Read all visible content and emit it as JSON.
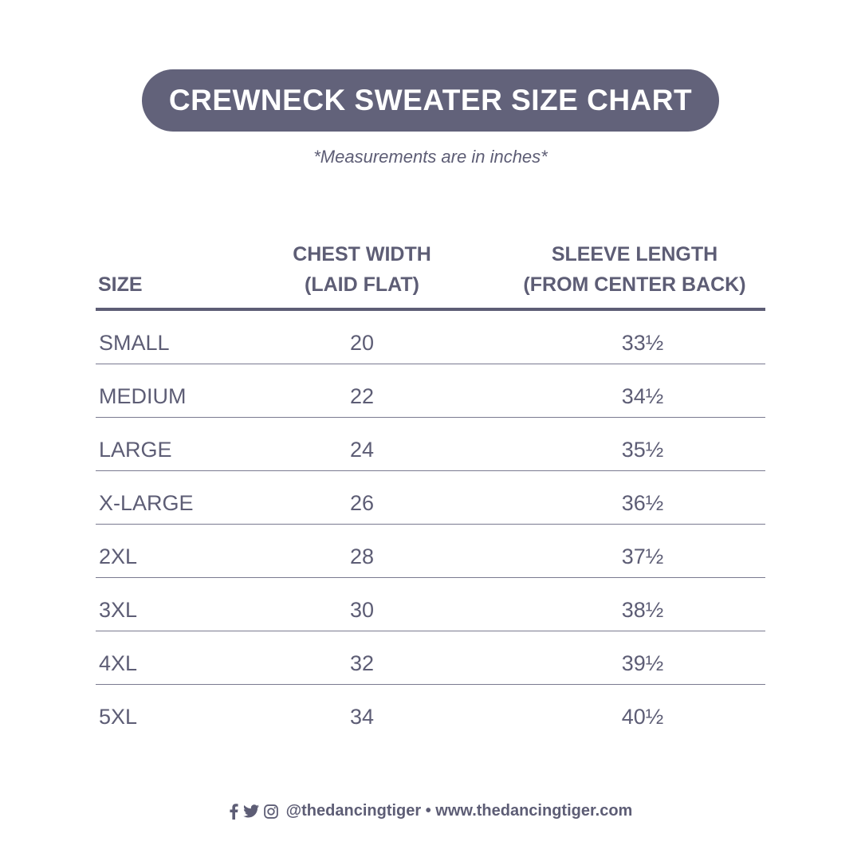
{
  "title": "CREWNECK SWEATER SIZE CHART",
  "subtitle": "*Measurements are in inches*",
  "columns": {
    "size": "SIZE",
    "chest_line1": "CHEST WIDTH",
    "chest_line2": "(LAID FLAT)",
    "sleeve_line1": "SLEEVE LENGTH",
    "sleeve_line2": "(FROM CENTER BACK)"
  },
  "rows": [
    {
      "size": "SMALL",
      "chest": "20",
      "sleeve": "33½"
    },
    {
      "size": "MEDIUM",
      "chest": "22",
      "sleeve": "34½"
    },
    {
      "size": "LARGE",
      "chest": "24",
      "sleeve": "35½"
    },
    {
      "size": "X-LARGE",
      "chest": "26",
      "sleeve": "36½"
    },
    {
      "size": "2XL",
      "chest": "28",
      "sleeve": "37½"
    },
    {
      "size": "3XL",
      "chest": "30",
      "sleeve": "38½"
    },
    {
      "size": "4XL",
      "chest": "32",
      "sleeve": "39½"
    },
    {
      "size": "5XL",
      "chest": "34",
      "sleeve": "40½"
    }
  ],
  "footer": {
    "icons": [
      "facebook-icon",
      "twitter-icon",
      "instagram-icon"
    ],
    "text": "@thedancingtiger • www.thedancingtiger.com"
  },
  "colors": {
    "accent": "#62627a",
    "text": "#5d5d75"
  }
}
